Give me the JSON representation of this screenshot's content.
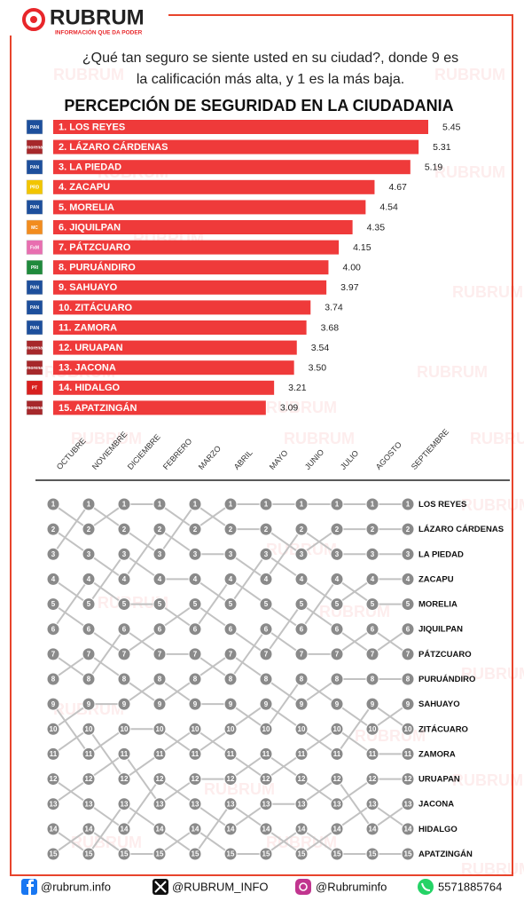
{
  "header": {
    "brand": "RUBRUM",
    "tagline": "INFORMACIÓN QUE DA PODER"
  },
  "question": [
    "¿Qué tan seguro se siente usted en su ciudad?, donde 9 es",
    "la calificación más alta, y  1 es la más baja."
  ],
  "watermark": "RUBRUM",
  "chart_data": [
    {
      "type": "bar",
      "orientation": "horizontal",
      "title": "PERCEPCIÓN DE SEGURIDAD EN LA CIUDADANIA",
      "color": "#ef3a3a",
      "categories": [
        "1. LOS REYES",
        "2. LÁZARO CÁRDENAS",
        "3. LA PIEDAD",
        "4. ZACAPU",
        "5. MORELIA",
        "6. JIQUILPAN",
        "7. PÁTZCUARO",
        "8. PURUÁNDIRO",
        "9. SAHUAYO",
        "10. ZITÁCUARO",
        "11. ZAMORA",
        "12. URUAPAN",
        "13. JACONA",
        "14. HIDALGO",
        "15. APATZINGÁN"
      ],
      "values": [
        5.45,
        5.31,
        5.19,
        4.67,
        4.54,
        4.35,
        4.15,
        4.0,
        3.97,
        3.74,
        3.68,
        3.54,
        3.5,
        3.21,
        3.09
      ],
      "value_labels": [
        "5.45",
        "5.31",
        "5.19",
        "4.67",
        "4.54",
        "4.35",
        "4.15",
        "4.00",
        "3.97",
        "3.74",
        "3.68",
        "3.54",
        "3.50",
        "3.21",
        "3.09"
      ],
      "parties": [
        {
          "label": "PAN",
          "color": "#1d4f9c"
        },
        {
          "label": "morena",
          "color": "#a6282b"
        },
        {
          "label": "PAN",
          "color": "#1d4f9c"
        },
        {
          "label": "PRD",
          "color": "#f2c500"
        },
        {
          "label": "PAN",
          "color": "#1d4f9c"
        },
        {
          "label": "MC",
          "color": "#f28c1e"
        },
        {
          "label": "FxM",
          "color": "#e86fb0"
        },
        {
          "label": "PRI",
          "color": "#1f8a3c"
        },
        {
          "label": "PAN",
          "color": "#1d4f9c"
        },
        {
          "label": "PAN",
          "color": "#1d4f9c"
        },
        {
          "label": "PAN",
          "color": "#1d4f9c"
        },
        {
          "label": "morena",
          "color": "#a6282b"
        },
        {
          "label": "morena",
          "color": "#a6282b"
        },
        {
          "label": "PT",
          "color": "#d8201f"
        },
        {
          "label": "morena",
          "color": "#a6282b"
        }
      ]
    },
    {
      "type": "bump",
      "line_color": "#c2c2c2",
      "marker_color": "#8a8a8a",
      "categories": [
        "OCTUBRE",
        "NOVIEMBRE",
        "DICIEMBRE",
        "FEBRERO",
        "MARZO",
        "ABRIL",
        "MAYO",
        "JUNIO",
        "JULIO",
        "AGOSTO",
        "SEPTIEMBRE"
      ],
      "series": [
        {
          "name": "LOS REYES",
          "values": [
            1,
            2,
            1,
            1,
            2,
            1,
            1,
            1,
            1,
            1,
            1
          ]
        },
        {
          "name": "LÁZARO CÁRDENAS",
          "values": [
            3,
            1,
            2,
            3,
            1,
            2,
            2,
            3,
            2,
            2,
            2
          ]
        },
        {
          "name": "LA PIEDAD",
          "values": [
            2,
            3,
            4,
            2,
            3,
            3,
            4,
            2,
            3,
            3,
            3
          ]
        },
        {
          "name": "ZACAPU",
          "values": [
            4,
            5,
            3,
            4,
            4,
            5,
            3,
            4,
            5,
            4,
            4
          ]
        },
        {
          "name": "MORELIA",
          "values": [
            6,
            4,
            5,
            5,
            6,
            4,
            5,
            6,
            4,
            5,
            5
          ]
        },
        {
          "name": "JIQUILPAN",
          "values": [
            5,
            6,
            7,
            6,
            5,
            6,
            7,
            5,
            6,
            7,
            6
          ]
        },
        {
          "name": "PÁTZCUARO",
          "values": [
            7,
            8,
            6,
            7,
            7,
            8,
            6,
            7,
            7,
            6,
            7
          ]
        },
        {
          "name": "PURUÁNDIRO",
          "values": [
            8,
            7,
            8,
            9,
            8,
            7,
            8,
            9,
            8,
            8,
            8
          ]
        },
        {
          "name": "SAHUAYO",
          "values": [
            10,
            9,
            9,
            8,
            9,
            9,
            10,
            8,
            9,
            10,
            9
          ]
        },
        {
          "name": "ZITÁCUARO",
          "values": [
            9,
            11,
            10,
            10,
            11,
            10,
            9,
            10,
            11,
            9,
            10
          ]
        },
        {
          "name": "ZAMORA",
          "values": [
            11,
            10,
            12,
            11,
            10,
            11,
            12,
            11,
            10,
            11,
            11
          ]
        },
        {
          "name": "URUAPAN",
          "values": [
            13,
            12,
            11,
            13,
            12,
            12,
            11,
            12,
            13,
            12,
            12
          ]
        },
        {
          "name": "JACONA",
          "values": [
            12,
            13,
            14,
            12,
            13,
            14,
            13,
            13,
            12,
            14,
            13
          ]
        },
        {
          "name": "HIDALGO",
          "values": [
            14,
            15,
            13,
            14,
            15,
            13,
            14,
            15,
            14,
            13,
            14
          ]
        },
        {
          "name": "APATZINGÁN",
          "values": [
            15,
            14,
            15,
            15,
            14,
            15,
            15,
            14,
            15,
            15,
            15
          ]
        }
      ]
    }
  ],
  "footer": [
    "@rubrum.info",
    "@RUBRUM_INFO",
    "@Rubruminfo",
    "5571885764"
  ]
}
